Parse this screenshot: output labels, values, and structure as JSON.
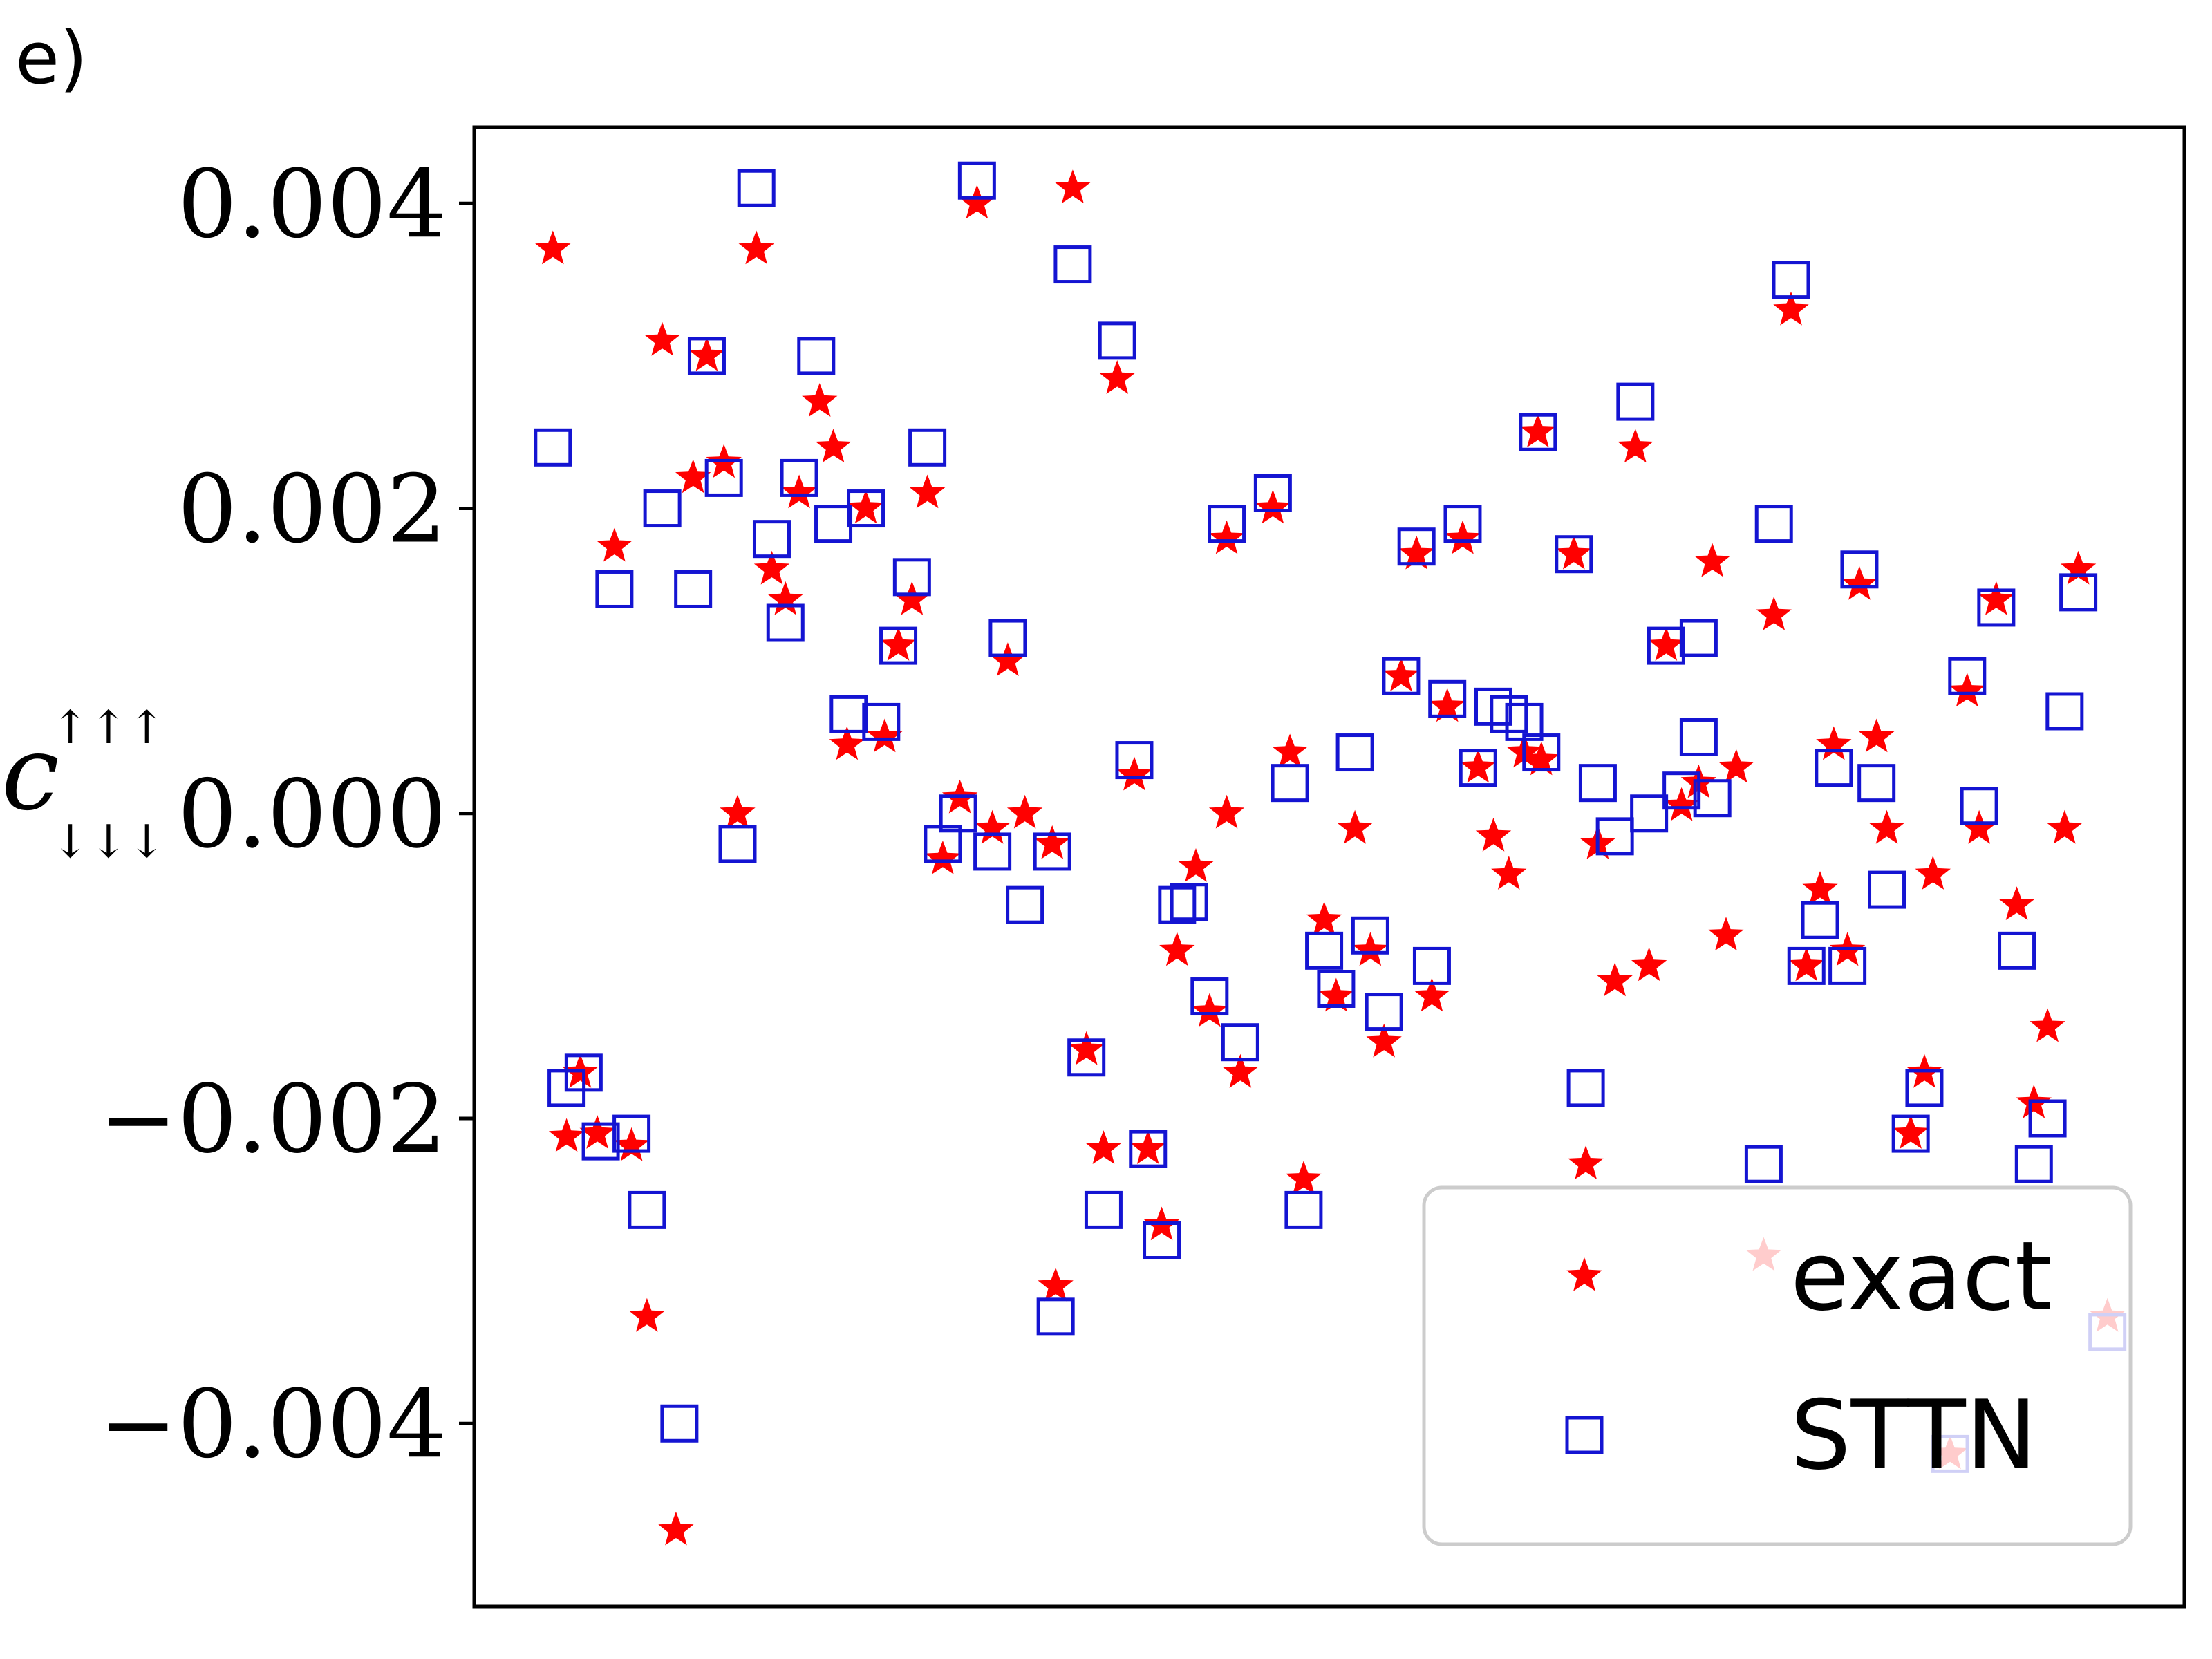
{
  "panel_label": "e)",
  "chart_data": {
    "type": "scatter",
    "ylabel": {
      "symbol": "c",
      "superscript": "↑↑↑",
      "subscript": "↓↓↓"
    },
    "ylim": [
      -0.0052,
      0.0045
    ],
    "xlim": [
      0,
      1
    ],
    "yticks": [
      0.004,
      0.002,
      0.0,
      -0.002,
      -0.004
    ],
    "ytick_labels": [
      "0.004",
      "0.002",
      "0.000",
      "−0.002",
      "−0.004"
    ],
    "grid": false,
    "legend": {
      "position": "lower-right",
      "entries": [
        "exact",
        "STTN"
      ]
    },
    "series": [
      {
        "name": "exact",
        "marker": "star",
        "color": "#ff0000",
        "points": [
          [
            0.046,
            0.0037
          ],
          [
            0.054,
            -0.00212
          ],
          [
            0.062,
            -0.0017
          ],
          [
            0.072,
            -0.0021
          ],
          [
            0.082,
            0.00175
          ],
          [
            0.092,
            -0.00218
          ],
          [
            0.101,
            -0.0033
          ],
          [
            0.11,
            0.0031
          ],
          [
            0.118,
            -0.0047
          ],
          [
            0.128,
            0.0022
          ],
          [
            0.136,
            0.003
          ],
          [
            0.146,
            0.0023
          ],
          [
            0.154,
            0.0
          ],
          [
            0.165,
            0.0037
          ],
          [
            0.174,
            0.0016
          ],
          [
            0.182,
            0.0014
          ],
          [
            0.19,
            0.0021
          ],
          [
            0.202,
            0.0027
          ],
          [
            0.21,
            0.0024
          ],
          [
            0.218,
            0.00045
          ],
          [
            0.229,
            0.002
          ],
          [
            0.24,
            0.0005
          ],
          [
            0.248,
            0.0011
          ],
          [
            0.256,
            0.0014
          ],
          [
            0.265,
            0.0021
          ],
          [
            0.274,
            -0.0003
          ],
          [
            0.284,
            0.0001
          ],
          [
            0.294,
            0.004
          ],
          [
            0.303,
            -0.0001
          ],
          [
            0.312,
            0.001
          ],
          [
            0.322,
            0.0
          ],
          [
            0.338,
            -0.0002
          ],
          [
            0.34,
            -0.0031
          ],
          [
            0.35,
            0.0041
          ],
          [
            0.358,
            -0.00155
          ],
          [
            0.368,
            -0.0022
          ],
          [
            0.376,
            0.00285
          ],
          [
            0.386,
            0.00025
          ],
          [
            0.394,
            -0.0022
          ],
          [
            0.402,
            -0.0027
          ],
          [
            0.411,
            -0.0009
          ],
          [
            0.422,
            -0.00035
          ],
          [
            0.43,
            -0.0013
          ],
          [
            0.44,
            -0.0
          ],
          [
            0.448,
            -0.0017
          ],
          [
            0.44,
            0.0018
          ],
          [
            0.467,
            0.002
          ],
          [
            0.477,
            0.0004
          ],
          [
            0.485,
            -0.0024
          ],
          [
            0.497,
            -0.0007
          ],
          [
            0.504,
            -0.0012
          ],
          [
            0.515,
            -0.0001
          ],
          [
            0.524,
            -0.0009
          ],
          [
            0.532,
            -0.0015
          ],
          [
            0.542,
            0.0009
          ],
          [
            0.551,
            0.0017
          ],
          [
            0.56,
            -0.0012
          ],
          [
            0.569,
            0.0007
          ],
          [
            0.578,
            0.0018
          ],
          [
            0.587,
            0.0003
          ],
          [
            0.596,
            -0.00015
          ],
          [
            0.605,
            -0.0004
          ],
          [
            0.614,
            0.0004
          ],
          [
            0.624,
            0.00035
          ],
          [
            0.622,
            0.0025
          ],
          [
            0.643,
            0.0017
          ],
          [
            0.65,
            -0.0023
          ],
          [
            0.657,
            -0.0002
          ],
          [
            0.667,
            -0.0011
          ],
          [
            0.679,
            0.0024
          ],
          [
            0.687,
            -0.001
          ],
          [
            0.697,
            0.0011
          ],
          [
            0.706,
            5e-05
          ],
          [
            0.716,
            0.0002
          ],
          [
            0.724,
            0.00165
          ],
          [
            0.732,
            -0.0008
          ],
          [
            0.738,
            0.0003
          ],
          [
            0.754,
            -0.0029
          ],
          [
            0.76,
            0.0013
          ],
          [
            0.77,
            0.0033
          ],
          [
            0.779,
            -0.001
          ],
          [
            0.787,
            -0.0005
          ],
          [
            0.795,
            0.00045
          ],
          [
            0.803,
            -0.0009
          ],
          [
            0.81,
            0.0015
          ],
          [
            0.82,
            0.0005
          ],
          [
            0.826,
            -0.0001
          ],
          [
            0.84,
            -0.0021
          ],
          [
            0.848,
            -0.0017
          ],
          [
            0.853,
            -0.0004
          ],
          [
            0.863,
            -0.0042
          ],
          [
            0.873,
            0.0008
          ],
          [
            0.88,
            -0.0001
          ],
          [
            0.89,
            0.0014
          ],
          [
            0.902,
            -0.0006
          ],
          [
            0.912,
            -0.0019
          ],
          [
            0.92,
            -0.0014
          ],
          [
            0.93,
            -0.0001
          ],
          [
            0.938,
            0.0016
          ],
          [
            0.955,
            -0.0033
          ]
        ]
      },
      {
        "name": "STTN",
        "marker": "square",
        "color": "#1414d2",
        "points": [
          [
            0.046,
            0.0024
          ],
          [
            0.054,
            -0.0018
          ],
          [
            0.064,
            -0.0017
          ],
          [
            0.074,
            -0.00215
          ],
          [
            0.082,
            0.00147
          ],
          [
            0.092,
            -0.0021
          ],
          [
            0.101,
            -0.0026
          ],
          [
            0.11,
            0.002
          ],
          [
            0.12,
            -0.004
          ],
          [
            0.128,
            0.00147
          ],
          [
            0.136,
            0.003
          ],
          [
            0.146,
            0.0022
          ],
          [
            0.154,
            -0.0002
          ],
          [
            0.165,
            0.0041
          ],
          [
            0.174,
            0.0018
          ],
          [
            0.182,
            0.00125
          ],
          [
            0.19,
            0.0022
          ],
          [
            0.2,
            0.003
          ],
          [
            0.21,
            0.0019
          ],
          [
            0.219,
            0.00065
          ],
          [
            0.229,
            0.002
          ],
          [
            0.238,
            0.0006
          ],
          [
            0.248,
            0.0011
          ],
          [
            0.256,
            0.00155
          ],
          [
            0.265,
            0.0024
          ],
          [
            0.274,
            -0.0002
          ],
          [
            0.283,
            0.0
          ],
          [
            0.294,
            0.00415
          ],
          [
            0.303,
            -0.00025
          ],
          [
            0.312,
            0.00115
          ],
          [
            0.322,
            -0.0006
          ],
          [
            0.34,
            -0.0033
          ],
          [
            0.338,
            -0.00025
          ],
          [
            0.35,
            0.0036
          ],
          [
            0.358,
            -0.0016
          ],
          [
            0.368,
            -0.0026
          ],
          [
            0.376,
            0.0031
          ],
          [
            0.386,
            0.00035
          ],
          [
            0.394,
            -0.0022
          ],
          [
            0.402,
            -0.0028
          ],
          [
            0.411,
            -0.0006
          ],
          [
            0.418,
            -0.00058
          ],
          [
            0.43,
            -0.0012
          ],
          [
            0.448,
            -0.0015
          ],
          [
            0.44,
            0.0019
          ],
          [
            0.467,
            0.0021
          ],
          [
            0.477,
            0.0002
          ],
          [
            0.485,
            -0.0026
          ],
          [
            0.497,
            -0.0009
          ],
          [
            0.504,
            -0.00115
          ],
          [
            0.515,
            0.0004
          ],
          [
            0.524,
            -0.0008
          ],
          [
            0.532,
            -0.0013
          ],
          [
            0.542,
            0.0009
          ],
          [
            0.551,
            0.00175
          ],
          [
            0.56,
            -0.001
          ],
          [
            0.569,
            0.00075
          ],
          [
            0.578,
            0.0019
          ],
          [
            0.587,
            0.0003
          ],
          [
            0.596,
            0.0007
          ],
          [
            0.605,
            0.00065
          ],
          [
            0.614,
            0.0006
          ],
          [
            0.624,
            0.0004
          ],
          [
            0.622,
            0.0025
          ],
          [
            0.643,
            0.0017
          ],
          [
            0.65,
            -0.0018
          ],
          [
            0.657,
            0.0002
          ],
          [
            0.667,
            -0.00015
          ],
          [
            0.679,
            0.0027
          ],
          [
            0.687,
            0.0
          ],
          [
            0.697,
            0.0011
          ],
          [
            0.706,
            0.00015
          ],
          [
            0.716,
            0.00115
          ],
          [
            0.716,
            0.0005
          ],
          [
            0.724,
            0.0001
          ],
          [
            0.754,
            -0.0023
          ],
          [
            0.76,
            0.0019
          ],
          [
            0.77,
            0.0035
          ],
          [
            0.779,
            -0.001
          ],
          [
            0.787,
            -0.0007
          ],
          [
            0.795,
            0.0003
          ],
          [
            0.803,
            -0.001
          ],
          [
            0.81,
            0.0016
          ],
          [
            0.82,
            0.0002
          ],
          [
            0.826,
            -0.0005
          ],
          [
            0.84,
            -0.0021
          ],
          [
            0.848,
            -0.0018
          ],
          [
            0.863,
            -0.0042
          ],
          [
            0.873,
            0.0009
          ],
          [
            0.88,
            5e-05
          ],
          [
            0.89,
            0.00135
          ],
          [
            0.902,
            -0.0009
          ],
          [
            0.912,
            -0.0023
          ],
          [
            0.92,
            -0.002
          ],
          [
            0.93,
            0.00067
          ],
          [
            0.938,
            0.00145
          ],
          [
            0.955,
            -0.0034
          ]
        ]
      }
    ]
  }
}
